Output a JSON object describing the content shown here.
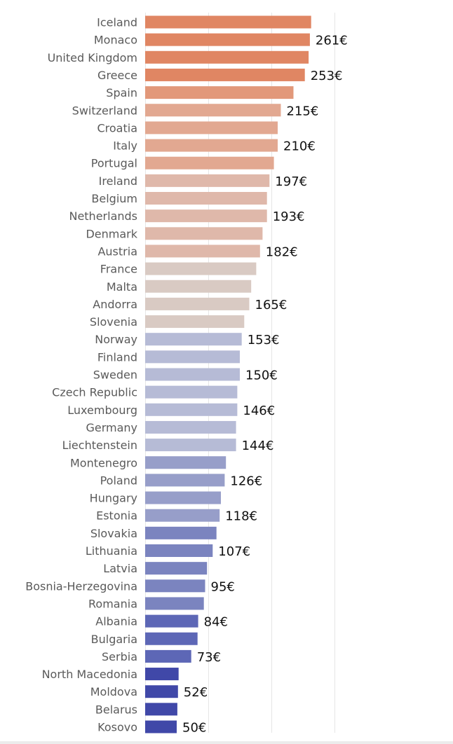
{
  "chart_data": {
    "type": "bar",
    "orientation": "horizontal",
    "title": "",
    "xlabel": "",
    "ylabel": "",
    "xlim": [
      0,
      300
    ],
    "grid": "vertical",
    "legend": "none",
    "value_suffix": "€",
    "categories": [
      "Iceland",
      "Monaco",
      "United Kingdom",
      "Greece",
      "Spain",
      "Switzerland",
      "Croatia",
      "Italy",
      "Portugal",
      "Ireland",
      "Belgium",
      "Netherlands",
      "Denmark",
      "Austria",
      "France",
      "Malta",
      "Andorra",
      "Slovenia",
      "Norway",
      "Finland",
      "Sweden",
      "Czech Republic",
      "Luxembourg",
      "Germany",
      "Liechtenstein",
      "Montenegro",
      "Poland",
      "Hungary",
      "Estonia",
      "Slovakia",
      "Lithuania",
      "Latvia",
      "Bosnia-Herzegovina",
      "Romania",
      "Albania",
      "Bulgaria",
      "Serbia",
      "North Macedonia",
      "Moldova",
      "Belarus",
      "Kosovo"
    ],
    "values": [
      263,
      261,
      259,
      253,
      235,
      215,
      210,
      210,
      204,
      197,
      193,
      193,
      186,
      182,
      176,
      168,
      165,
      157,
      153,
      150,
      150,
      146,
      146,
      144,
      144,
      128,
      126,
      120,
      118,
      113,
      107,
      98,
      95,
      93,
      84,
      83,
      73,
      53,
      52,
      51,
      50
    ],
    "labeled": [
      false,
      true,
      false,
      true,
      false,
      true,
      false,
      true,
      false,
      true,
      false,
      true,
      false,
      true,
      false,
      false,
      true,
      false,
      true,
      false,
      true,
      false,
      true,
      false,
      true,
      false,
      true,
      false,
      true,
      false,
      true,
      false,
      true,
      false,
      true,
      false,
      true,
      false,
      true,
      false,
      true
    ],
    "colors": [
      "#e08663",
      "#e08663",
      "#e08663",
      "#e08663",
      "#e2987a",
      "#e2a891",
      "#e2a891",
      "#e2a891",
      "#e2a891",
      "#dfb8aa",
      "#dfb8aa",
      "#dfb8aa",
      "#dfb8aa",
      "#dfb8aa",
      "#d9cac3",
      "#d9cac3",
      "#d9cac3",
      "#d9cac3",
      "#b6bbd6",
      "#b6bbd6",
      "#b6bbd6",
      "#b6bbd6",
      "#b6bbd6",
      "#b6bbd6",
      "#b6bbd6",
      "#979ec9",
      "#979ec9",
      "#979ec9",
      "#979ec9",
      "#7b84bf",
      "#7b84bf",
      "#7b84bf",
      "#7b84bf",
      "#7b84bf",
      "#5d67b6",
      "#5d67b6",
      "#5d67b6",
      "#4048a8",
      "#4048a8",
      "#4048a8",
      "#4048a8"
    ]
  }
}
